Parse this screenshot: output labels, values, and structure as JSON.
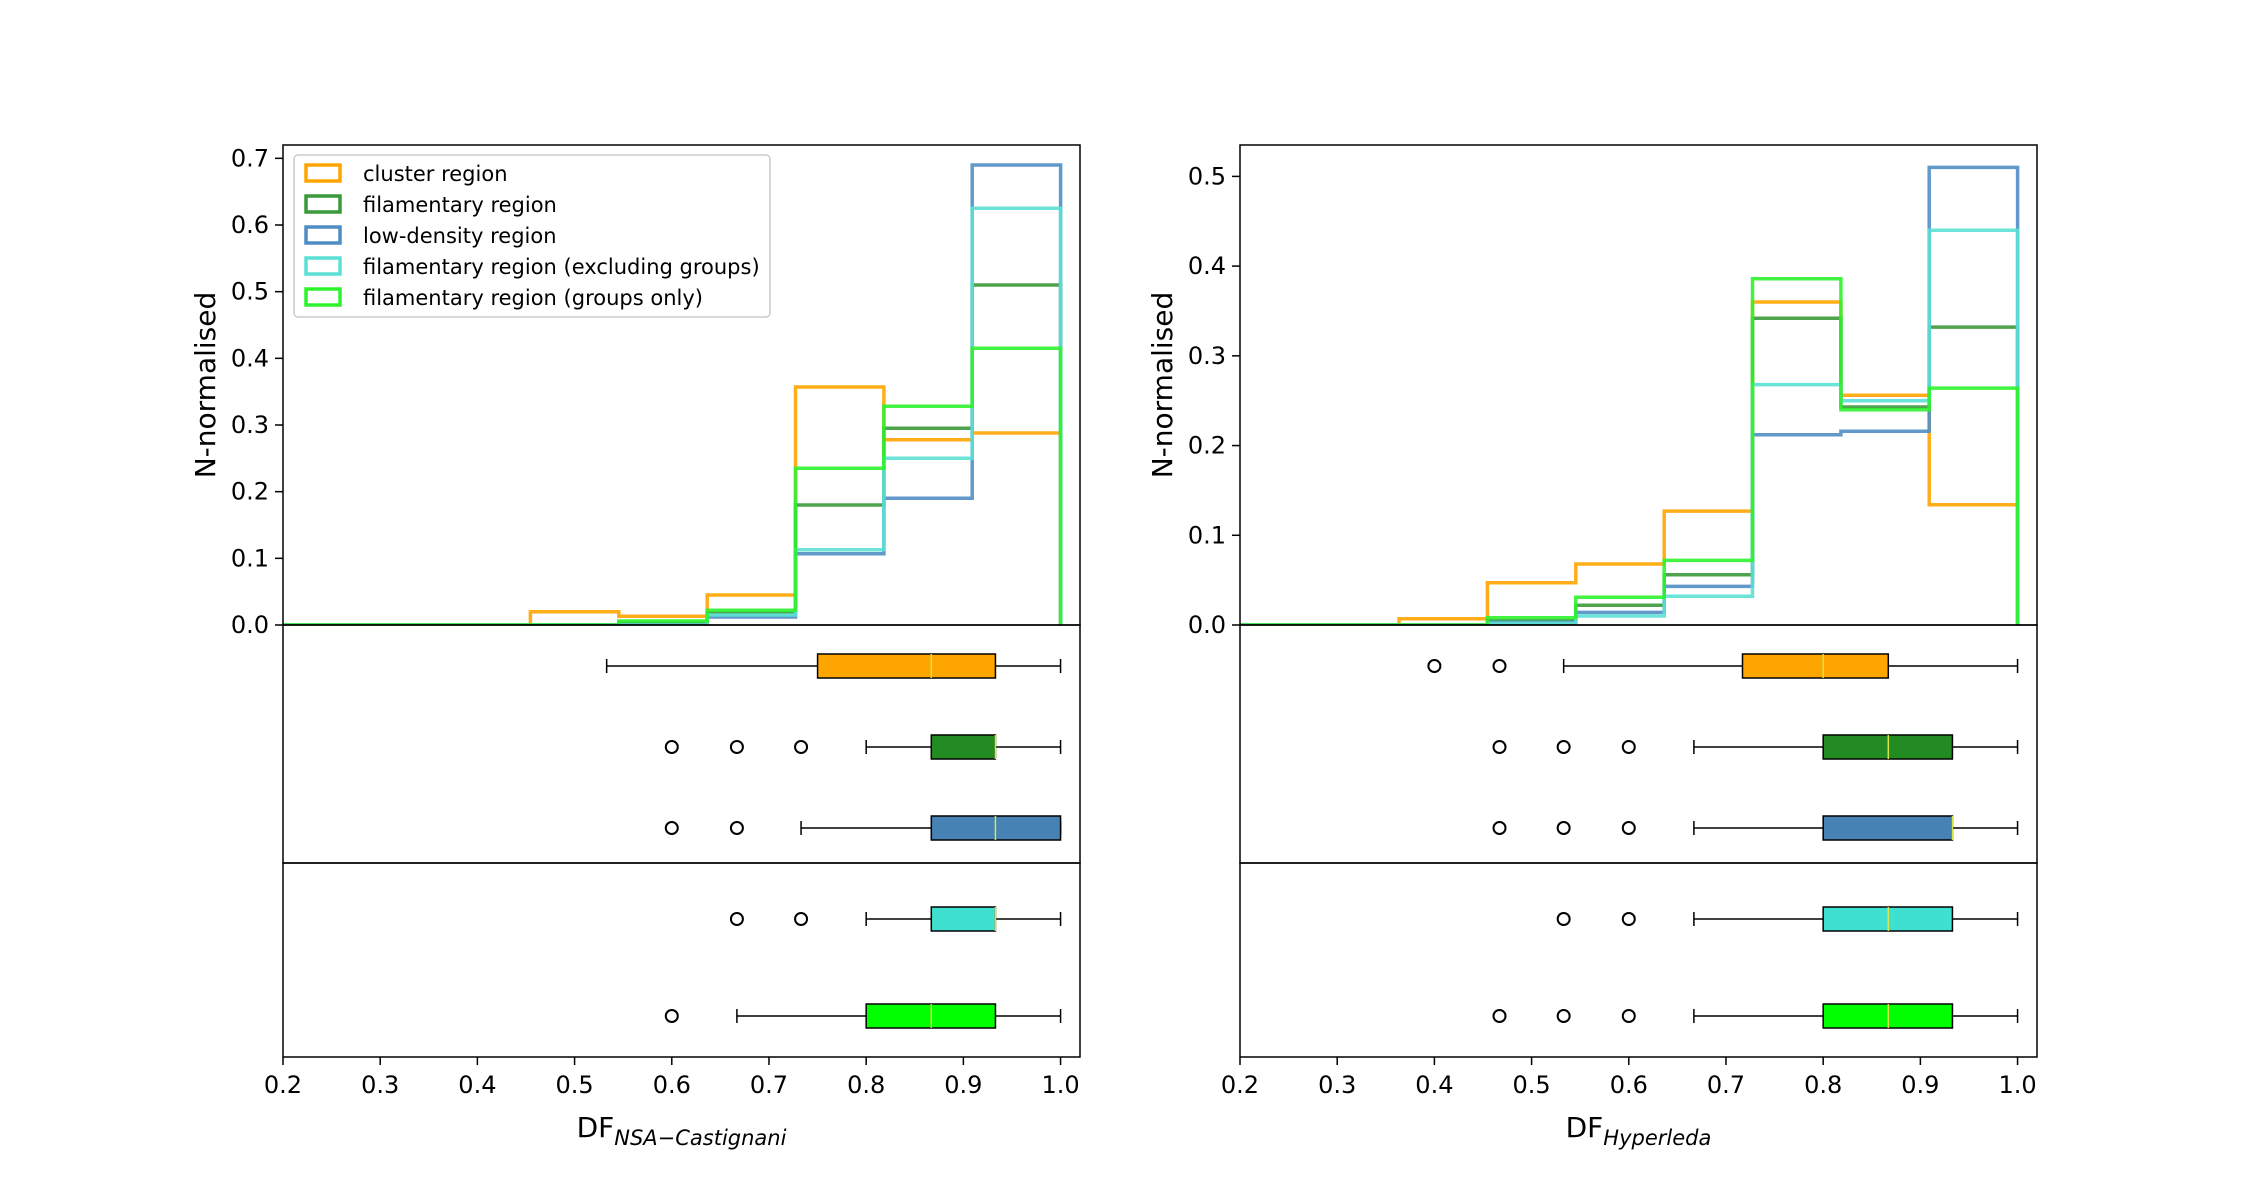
{
  "legend": {
    "items": [
      {
        "label": "cluster region",
        "color": "#FFA500"
      },
      {
        "label": "filamentary region",
        "color": "#3A9A3A"
      },
      {
        "label": "low-density region",
        "color": "#4F8EC4"
      },
      {
        "label": "filamentary region (excluding groups)",
        "color": "#5BE0D5"
      },
      {
        "label": "filamentary region (groups only)",
        "color": "#2EF22E"
      }
    ]
  },
  "chart_data": [
    {
      "type": "histogram-with-boxplots",
      "panel": "left",
      "ylabel": "N-normalised",
      "xlabel_main": "DF",
      "xlabel_sub": "NSA−Castignani",
      "xlim": [
        0.2,
        1.02
      ],
      "ylim": [
        0,
        0.72
      ],
      "xticks": [
        "0.2",
        "0.3",
        "0.4",
        "0.5",
        "0.6",
        "0.7",
        "0.8",
        "0.9",
        "1.0"
      ],
      "yticks": [
        "0.0",
        "0.1",
        "0.2",
        "0.3",
        "0.4",
        "0.5",
        "0.6",
        "0.7"
      ],
      "bin_edges": [
        0.2,
        0.2909,
        0.3818,
        0.4545,
        0.5455,
        0.6364,
        0.7273,
        0.8182,
        0.9091,
        1.0
      ],
      "series": [
        {
          "name": "cluster region",
          "color": "#FFA500",
          "values": [
            0,
            0,
            0,
            0.02,
            0.013,
            0.045,
            0.357,
            0.278,
            0.288
          ]
        },
        {
          "name": "filamentary region",
          "color": "#3A9A3A",
          "values": [
            0,
            0,
            0,
            0,
            0.003,
            0.018,
            0.18,
            0.295,
            0.51
          ]
        },
        {
          "name": "low-density region",
          "color": "#4F8EC4",
          "values": [
            0,
            0,
            0,
            0,
            0,
            0.012,
            0.107,
            0.19,
            0.69
          ]
        },
        {
          "name": "filamentary region (excluding groups)",
          "color": "#5BE0D5",
          "values": [
            0,
            0,
            0,
            0,
            0,
            0.015,
            0.113,
            0.25,
            0.625
          ]
        },
        {
          "name": "filamentary region (groups only)",
          "color": "#2EF22E",
          "values": [
            0,
            0,
            0,
            0,
            0.006,
            0.022,
            0.235,
            0.328,
            0.415
          ]
        }
      ],
      "boxplots_upper": [
        {
          "color": "#FFA500",
          "whisker_low": 0.533,
          "q1": 0.75,
          "median": 0.867,
          "q3": 0.933,
          "whisker_high": 1.0,
          "outliers": []
        },
        {
          "color": "#228B22",
          "whisker_low": 0.8,
          "q1": 0.867,
          "median": 0.933,
          "q3": 0.933,
          "whisker_high": 1.0,
          "outliers": [
            0.6,
            0.667,
            0.733
          ]
        },
        {
          "color": "#4682B4",
          "whisker_low": 0.733,
          "q1": 0.867,
          "median": 0.933,
          "q3": 1.0,
          "whisker_high": 1.0,
          "outliers": [
            0.6,
            0.667
          ]
        }
      ],
      "boxplots_lower": [
        {
          "color": "#40E0D0",
          "whisker_low": 0.8,
          "q1": 0.867,
          "median": 0.933,
          "q3": 0.933,
          "whisker_high": 1.0,
          "outliers": [
            0.667,
            0.733
          ]
        },
        {
          "color": "#00FF00",
          "whisker_low": 0.667,
          "q1": 0.8,
          "median": 0.867,
          "q3": 0.933,
          "whisker_high": 1.0,
          "outliers": [
            0.6
          ]
        }
      ]
    },
    {
      "type": "histogram-with-boxplots",
      "panel": "right",
      "ylabel": "N-normalised",
      "xlabel_main": "DF",
      "xlabel_sub": "Hyperleda",
      "xlim": [
        0.2,
        1.02
      ],
      "ylim": [
        0,
        0.535
      ],
      "xticks": [
        "0.2",
        "0.3",
        "0.4",
        "0.5",
        "0.6",
        "0.7",
        "0.8",
        "0.9",
        "1.0"
      ],
      "yticks": [
        "0.0",
        "0.1",
        "0.2",
        "0.3",
        "0.4",
        "0.5"
      ],
      "bin_edges": [
        0.2,
        0.2909,
        0.3636,
        0.4545,
        0.5455,
        0.6364,
        0.7273,
        0.8182,
        0.9091,
        1.0
      ],
      "series": [
        {
          "name": "cluster region",
          "color": "#FFA500",
          "values": [
            0,
            0,
            0.007,
            0.047,
            0.068,
            0.127,
            0.36,
            0.256,
            0.134
          ]
        },
        {
          "name": "filamentary region",
          "color": "#3A9A3A",
          "values": [
            0,
            0,
            0,
            0.005,
            0.022,
            0.056,
            0.342,
            0.243,
            0.332
          ]
        },
        {
          "name": "low-density region",
          "color": "#4F8EC4",
          "values": [
            0,
            0,
            0,
            0.003,
            0.014,
            0.043,
            0.212,
            0.216,
            0.51
          ]
        },
        {
          "name": "filamentary region (excluding groups)",
          "color": "#5BE0D5",
          "values": [
            0,
            0,
            0,
            0.002,
            0.01,
            0.032,
            0.268,
            0.25,
            0.44
          ]
        },
        {
          "name": "filamentary region (groups only)",
          "color": "#2EF22E",
          "values": [
            0,
            0,
            0,
            0.008,
            0.031,
            0.072,
            0.386,
            0.24,
            0.264
          ]
        }
      ],
      "boxplots_upper": [
        {
          "color": "#FFA500",
          "whisker_low": 0.533,
          "q1": 0.717,
          "median": 0.8,
          "q3": 0.867,
          "whisker_high": 1.0,
          "outliers": [
            0.4,
            0.467
          ]
        },
        {
          "color": "#228B22",
          "whisker_low": 0.667,
          "q1": 0.8,
          "median": 0.867,
          "q3": 0.933,
          "whisker_high": 1.0,
          "outliers": [
            0.467,
            0.533,
            0.6
          ]
        },
        {
          "color": "#4682B4",
          "whisker_low": 0.667,
          "q1": 0.8,
          "median": 0.933,
          "q3": 0.933,
          "whisker_high": 1.0,
          "outliers": [
            0.467,
            0.533,
            0.6
          ]
        }
      ],
      "boxplots_lower": [
        {
          "color": "#40E0D0",
          "whisker_low": 0.667,
          "q1": 0.8,
          "median": 0.867,
          "q3": 0.933,
          "whisker_high": 1.0,
          "outliers": [
            0.533,
            0.6
          ]
        },
        {
          "color": "#00FF00",
          "whisker_low": 0.667,
          "q1": 0.8,
          "median": 0.867,
          "q3": 0.933,
          "whisker_high": 1.0,
          "outliers": [
            0.467,
            0.533,
            0.6
          ]
        }
      ]
    }
  ]
}
